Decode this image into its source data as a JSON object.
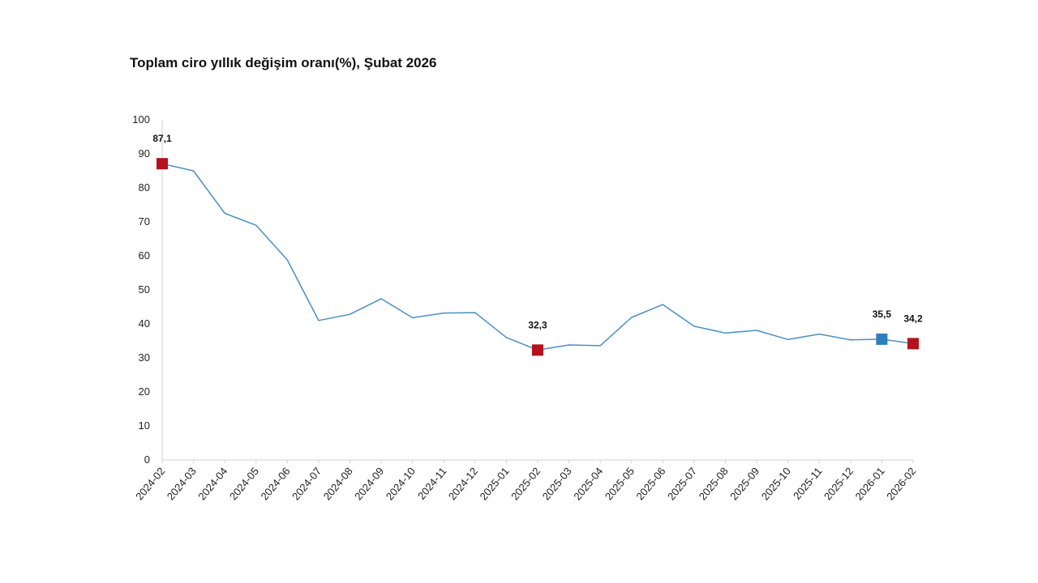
{
  "chart_data": {
    "type": "line",
    "title": "Toplam ciro yıllık değişim oranı(%), Şubat 2026",
    "xlabel": "",
    "ylabel": "",
    "ylim": [
      0,
      100
    ],
    "yticks": [
      0,
      10,
      20,
      30,
      40,
      50,
      60,
      70,
      80,
      90,
      100
    ],
    "grid": false,
    "categories": [
      "2024-02",
      "2024-03",
      "2024-04",
      "2024-05",
      "2024-06",
      "2024-07",
      "2024-08",
      "2024-09",
      "2024-10",
      "2024-11",
      "2024-12",
      "2025-01",
      "2025-02",
      "2025-03",
      "2025-04",
      "2025-05",
      "2025-06",
      "2025-07",
      "2025-08",
      "2025-09",
      "2025-10",
      "2025-11",
      "2025-12",
      "2026-01",
      "2026-02"
    ],
    "series": [
      {
        "values": [
          87.1,
          85.0,
          72.5,
          69.0,
          58.8,
          41.0,
          42.8,
          47.4,
          41.8,
          43.2,
          43.3,
          36.0,
          32.3,
          33.8,
          33.6,
          41.9,
          45.7,
          39.3,
          37.3,
          38.1,
          35.4,
          37.0,
          35.3,
          35.5,
          34.2
        ],
        "color": "#4a90c2"
      }
    ],
    "markers": [
      {
        "index": 0,
        "label": "87,1",
        "color": "#b5121b"
      },
      {
        "index": 12,
        "label": "32,3",
        "color": "#b5121b"
      },
      {
        "index": 23,
        "label": "35,5",
        "color": "#2e7fc0"
      },
      {
        "index": 24,
        "label": "34,2",
        "color": "#b5121b"
      }
    ],
    "axis_color": "#d0d0d0"
  }
}
